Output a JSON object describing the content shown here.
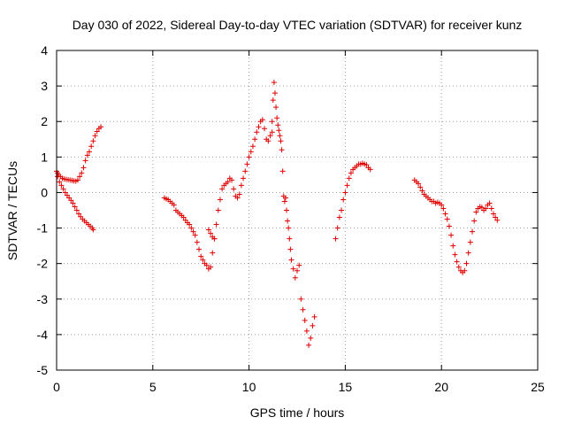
{
  "chart_data": {
    "type": "scatter",
    "title": "Day 030 of 2022, Sidereal Day-to-day VTEC variation (SDTVAR) for receiver kunz",
    "xlabel": "GPS time / hours",
    "ylabel": "SDTVAR / TECUs",
    "xlim": [
      0,
      25
    ],
    "ylim": [
      -5,
      4
    ],
    "grid": true,
    "marker": "+",
    "color": "#e00000",
    "xticks": [
      0,
      5,
      10,
      15,
      20,
      25
    ],
    "xtick_labels": [
      "0",
      "5",
      "10",
      "15",
      "20",
      "25"
    ],
    "yticks": [
      -5,
      -4,
      -3,
      -2,
      -1,
      0,
      1,
      2,
      3,
      4
    ],
    "ytick_labels": [
      "-5",
      "-4",
      "-3",
      "-2",
      "-1",
      "0",
      "1",
      "2",
      "3",
      "4"
    ],
    "series": [
      {
        "name": "SDTVAR",
        "segments": [
          {
            "x": [
              0,
              0.05,
              0.1,
              0.2,
              0.3,
              0.4,
              0.5,
              0.6,
              0.7,
              0.8,
              0.9,
              1.0,
              1.1,
              1.2,
              1.3,
              1.4,
              1.5,
              1.6,
              1.7,
              1.8,
              1.9,
              2.0,
              2.1,
              2.2,
              2.3
            ],
            "y": [
              0.6,
              0.55,
              0.5,
              0.45,
              0.4,
              0.38,
              0.37,
              0.36,
              0.35,
              0.34,
              0.33,
              0.32,
              0.35,
              0.45,
              0.55,
              0.7,
              0.9,
              1.05,
              1.15,
              1.3,
              1.45,
              1.6,
              1.72,
              1.8,
              1.85
            ]
          },
          {
            "x": [
              0.05,
              0.15,
              0.25,
              0.35,
              0.45,
              0.55,
              0.65,
              0.75,
              0.85,
              0.95,
              1.05,
              1.15,
              1.25,
              1.35,
              1.45,
              1.55,
              1.65,
              1.75,
              1.85,
              1.9
            ],
            "y": [
              0.45,
              0.3,
              0.2,
              0.1,
              0.0,
              -0.08,
              -0.15,
              -0.22,
              -0.3,
              -0.4,
              -0.5,
              -0.6,
              -0.68,
              -0.75,
              -0.8,
              -0.85,
              -0.9,
              -0.95,
              -1.0,
              -1.05
            ]
          },
          {
            "x": [
              5.6,
              5.7,
              5.8,
              5.9,
              6.0,
              6.1,
              6.2,
              6.3,
              6.4,
              6.5,
              6.6,
              6.7,
              6.8,
              6.9,
              7.0,
              7.1,
              7.2,
              7.3,
              7.4,
              7.5,
              7.6,
              7.7,
              7.8,
              7.9,
              8.0,
              8.1,
              8.2,
              8.3,
              8.4,
              8.5,
              8.6,
              8.7,
              8.8,
              8.9,
              9.0,
              9.1,
              9.2,
              9.3,
              9.4,
              9.5,
              9.6,
              9.7,
              9.8,
              9.9,
              10.0,
              10.1,
              10.2,
              10.3,
              10.4,
              10.5,
              10.6,
              10.7,
              10.8,
              10.9,
              11.0,
              11.1,
              11.2
            ],
            "y": [
              -0.15,
              -0.18,
              -0.2,
              -0.25,
              -0.3,
              -0.35,
              -0.5,
              -0.55,
              -0.6,
              -0.65,
              -0.7,
              -0.78,
              -0.85,
              -0.9,
              -1.0,
              -1.1,
              -1.2,
              -1.4,
              -1.6,
              -1.8,
              -1.9,
              -2.0,
              -2.05,
              -2.15,
              -2.1,
              -1.7,
              -1.3,
              -0.9,
              -0.5,
              -0.2,
              0.1,
              0.2,
              0.25,
              0.3,
              0.4,
              0.35,
              0.1,
              -0.1,
              -0.15,
              -0.05,
              0.2,
              0.4,
              0.6,
              0.8,
              1.0,
              1.15,
              1.3,
              1.5,
              1.7,
              1.85,
              2.0,
              2.05,
              1.8,
              1.5,
              1.45,
              1.6,
              1.7
            ]
          },
          {
            "x": [
              7.9,
              8.0,
              8.1,
              8.2
            ],
            "y": [
              -1.05,
              -1.15,
              -1.25,
              -1.3
            ]
          },
          {
            "x": [
              11.2,
              11.25,
              11.3,
              11.35,
              11.4,
              11.45,
              11.5,
              11.55,
              11.6,
              11.65,
              11.7,
              11.75,
              11.8,
              11.85,
              11.9,
              11.95,
              12.0,
              12.05,
              12.1,
              12.15,
              12.2,
              12.3,
              12.4,
              12.5,
              12.6,
              12.7,
              12.8,
              12.9,
              13.0,
              13.1,
              13.2,
              13.3,
              13.4
            ],
            "y": [
              2.0,
              2.6,
              3.1,
              2.8,
              2.4,
              2.1,
              1.9,
              1.75,
              1.6,
              1.45,
              1.2,
              0.6,
              -0.1,
              -0.25,
              -0.15,
              -0.5,
              -0.8,
              -1.0,
              -1.3,
              -1.6,
              -1.9,
              -2.15,
              -2.4,
              -2.2,
              -2.05,
              -3.0,
              -3.3,
              -3.6,
              -3.9,
              -4.3,
              -4.1,
              -3.75,
              -3.5
            ]
          },
          {
            "x": [
              14.5,
              14.6,
              14.7,
              14.8,
              14.9,
              15.0,
              15.1,
              15.2,
              15.3,
              15.4,
              15.5,
              15.6,
              15.7,
              15.8,
              15.9,
              16.0,
              16.1,
              16.2,
              16.3
            ],
            "y": [
              -1.3,
              -1.0,
              -0.7,
              -0.5,
              -0.2,
              0.0,
              0.2,
              0.4,
              0.55,
              0.65,
              0.7,
              0.75,
              0.8,
              0.8,
              0.82,
              0.8,
              0.78,
              0.7,
              0.65
            ]
          },
          {
            "x": [
              18.6,
              18.7,
              18.8,
              18.9,
              19.0,
              19.1,
              19.2,
              19.3,
              19.4,
              19.5,
              19.6,
              19.7,
              19.8,
              19.9,
              20.0,
              20.1,
              20.2,
              20.3,
              20.4,
              20.5,
              20.6,
              20.7,
              20.8,
              20.9,
              21.0,
              21.1,
              21.2,
              21.3,
              21.4,
              21.5,
              21.6,
              21.7,
              21.8,
              21.9,
              22.0,
              22.1,
              22.2,
              22.3,
              22.4,
              22.5,
              22.6,
              22.7,
              22.8,
              22.9
            ],
            "y": [
              0.35,
              0.3,
              0.25,
              0.15,
              0.05,
              -0.05,
              -0.1,
              -0.15,
              -0.2,
              -0.25,
              -0.25,
              -0.3,
              -0.28,
              -0.3,
              -0.35,
              -0.45,
              -0.6,
              -0.75,
              -0.95,
              -1.2,
              -1.5,
              -1.75,
              -1.95,
              -2.1,
              -2.2,
              -2.25,
              -2.2,
              -2.0,
              -1.7,
              -1.4,
              -1.1,
              -0.8,
              -0.55,
              -0.45,
              -0.4,
              -0.42,
              -0.5,
              -0.45,
              -0.35,
              -0.3,
              -0.45,
              -0.6,
              -0.7,
              -0.78
            ]
          }
        ]
      }
    ]
  }
}
